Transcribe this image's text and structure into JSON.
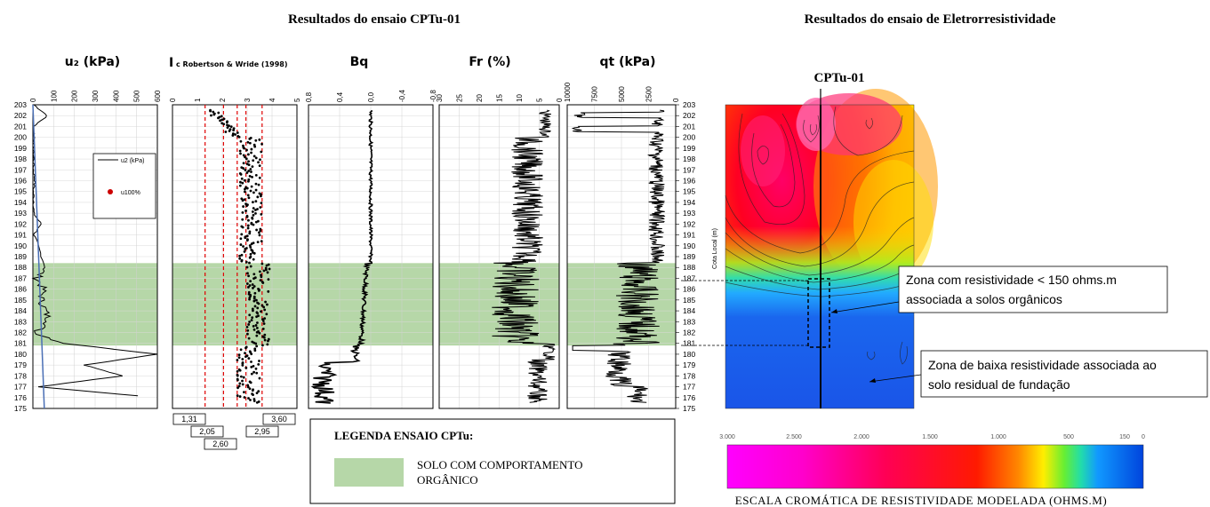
{
  "left_title": "Resultados do ensaio CPTu-01",
  "right_title": "Resultados do ensaio de Eletrorresistividade",
  "depth_ticks": [
    "203",
    "202",
    "201",
    "200",
    "199",
    "198",
    "197",
    "196",
    "195",
    "194",
    "193",
    "192",
    "191",
    "190",
    "189",
    "188",
    "187",
    "186",
    "185",
    "184",
    "183",
    "182",
    "181",
    "180",
    "179",
    "178",
    "177",
    "176",
    "175"
  ],
  "panels": {
    "u2": {
      "title": "u₂ (kPa)",
      "ticks": [
        "0",
        "100",
        "200",
        "300",
        "400",
        "500",
        "600"
      ],
      "legend_line": "u2 (kPa)",
      "legend_point": "u100%"
    },
    "ic": {
      "title_main": "I",
      "title_sub": "c Robertson & Wride (1998)",
      "ticks": [
        "0",
        "1",
        "2",
        "3",
        "4",
        "5"
      ],
      "boundaries": [
        "1,31",
        "2,05",
        "2,60",
        "2,95",
        "3,60"
      ]
    },
    "bq": {
      "title": "Bq",
      "ticks": [
        "0,8",
        "0,4",
        "0,0",
        "-0,4",
        "-0,8"
      ]
    },
    "fr": {
      "title": "Fr (%)",
      "ticks": [
        "30",
        "25",
        "20",
        "15",
        "10",
        "5",
        "0"
      ]
    },
    "qt": {
      "title": "qt (kPa)",
      "ticks": [
        "10000",
        "7500",
        "5000",
        "2500",
        "0"
      ]
    }
  },
  "right_axis_label": "Cota Local (m)",
  "resist_section_label": "CPTu-01",
  "callouts": {
    "upper": [
      "Zona com resistividade < 150 ohms.m",
      "associada a solos orgânicos"
    ],
    "lower": [
      "Zona de baixa resistividade associada ao",
      "solo residual de fundação"
    ]
  },
  "legend": {
    "title": "LEGENDA ENSAIO CPTu:",
    "item_line1": "SOLO COM COMPORTAMENTO",
    "item_line2": "ORGÂNICO",
    "item_color": "#b6d7a8"
  },
  "color_scale": {
    "ticks": [
      "3.000",
      "2.500",
      "2.000",
      "1.500",
      "1.000",
      "500",
      "150",
      "0"
    ],
    "caption": "ESCALA  CROMÁTICA  DE RESISTIVIDADE  MODELADA  (OHMS.M)"
  },
  "chart_data": [
    {
      "type": "line",
      "title": "u₂ (kPa)",
      "xlim": [
        0,
        600
      ],
      "ylim": [
        175,
        203
      ],
      "ylabel": "Cota Local (m)",
      "series": [
        {
          "name": "u2 (kPa)",
          "x": [
            5,
            70,
            2,
            8,
            1,
            4,
            3,
            10,
            2,
            5,
            3,
            40,
            5,
            25,
            60,
            20,
            50,
            40,
            60,
            80,
            10,
            150,
            600,
            250,
            430,
            30,
            600
          ],
          "y": [
            203,
            202,
            201,
            200,
            199,
            198,
            197,
            196,
            195,
            194,
            193,
            192,
            191,
            190,
            188,
            187,
            186,
            185,
            184,
            183,
            182,
            181,
            180,
            179,
            178,
            177,
            176
          ]
        },
        {
          "name": "u100%",
          "x": [
            0,
            55
          ],
          "y": [
            180,
            175
          ]
        }
      ]
    },
    {
      "type": "scatter",
      "title": "Ic Robertson & Wride (1998)",
      "xlim": [
        0,
        5
      ],
      "ylim": [
        175,
        203
      ],
      "boundaries": [
        1.31,
        2.05,
        2.6,
        2.95,
        3.6
      ]
    },
    {
      "type": "line",
      "title": "Bq",
      "xlim": [
        0.8,
        -0.8
      ],
      "ylim": [
        175,
        203
      ]
    },
    {
      "type": "line",
      "title": "Fr (%)",
      "xlim": [
        30,
        0
      ],
      "ylim": [
        175,
        203
      ]
    },
    {
      "type": "line",
      "title": "qt (kPa)",
      "xlim": [
        10000,
        0
      ],
      "ylim": [
        175,
        203
      ]
    }
  ],
  "organic_band": {
    "top": 188.4,
    "bottom": 180.8
  }
}
